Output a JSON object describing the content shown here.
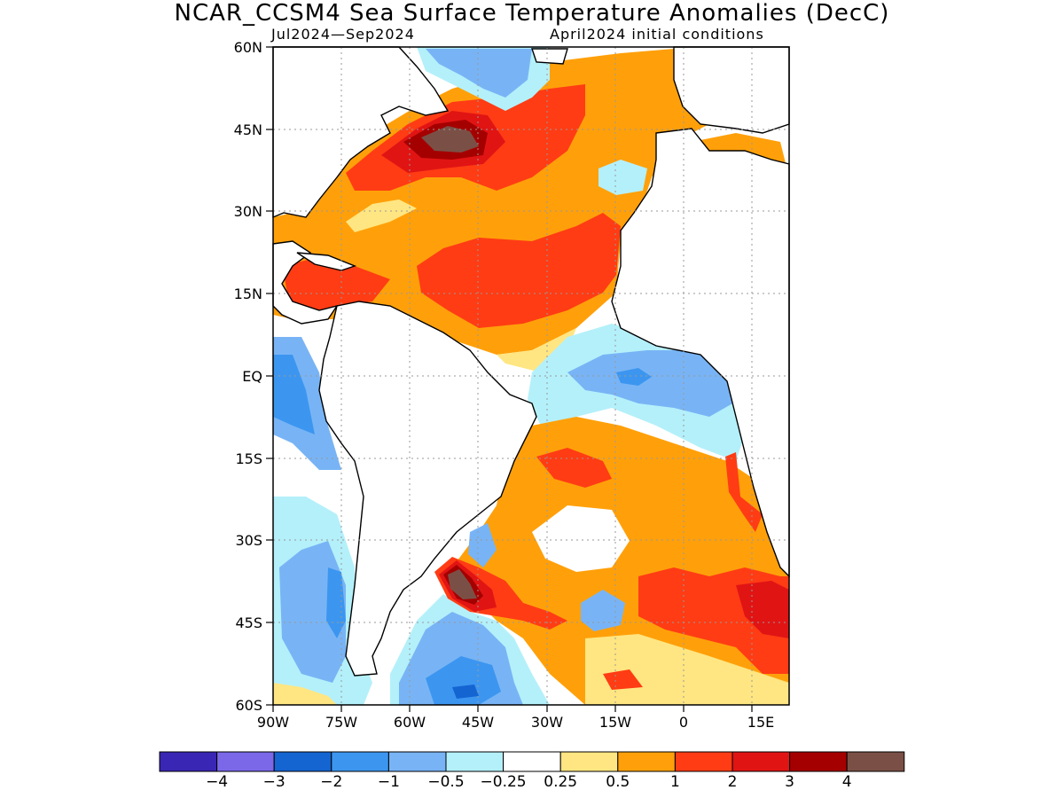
{
  "header": {
    "title": "NCAR_CCSM4 Sea Surface Temperature Anomalies (DecC)",
    "period": "Jul2024—Sep2024",
    "init": "April2024 initial conditions"
  },
  "axes": {
    "lat_labels": [
      "60N",
      "45N",
      "30N",
      "15N",
      "EQ",
      "15S",
      "30S",
      "45S",
      "60S"
    ],
    "lon_labels": [
      "90W",
      "75W",
      "60W",
      "45W",
      "30W",
      "15W",
      "0",
      "15E"
    ],
    "lat_range": [
      -60,
      60
    ],
    "lon_range": [
      -90,
      18
    ],
    "grid": true
  },
  "colorbar": {
    "colors": [
      "#3a26b4",
      "#7a68e8",
      "#1464d2",
      "#3c96f0",
      "#78b4f5",
      "#b4f0fa",
      "#ffffff",
      "#ffe682",
      "#ffa00a",
      "#ff3c14",
      "#e11414",
      "#a50000",
      "#7a5046"
    ],
    "labels": [
      "−4",
      "−3",
      "−2",
      "−1",
      "−0.5",
      "−0.25",
      "0.25",
      "0.5",
      "1",
      "2",
      "3",
      "4"
    ]
  },
  "map_data": {
    "type": "contour-map",
    "variable": "SST anomaly",
    "regions": [
      {
        "level": 0.5,
        "area": "North Atlantic broad",
        "color": "#ffa00a"
      },
      {
        "level": 1,
        "area": "Tropical North Atlantic",
        "color": "#ff3c14"
      },
      {
        "level": 3,
        "area": "Gulf Stream near 42N 52W",
        "color": "#a50000"
      },
      {
        "level": 4,
        "area": "Gulf Stream core",
        "color": "#7a5046"
      },
      {
        "level": -0.5,
        "area": "Equatorial Atlantic",
        "color": "#b4f0fa"
      },
      {
        "level": -1,
        "area": "Gulf of Guinea",
        "color": "#78b4f5"
      },
      {
        "level": 0.5,
        "area": "South Atlantic subtropics",
        "color": "#ffa00a"
      },
      {
        "level": 4,
        "area": "Brazil-Malvinas confluence near 38S 52W",
        "color": "#7a5046"
      },
      {
        "level": -1,
        "area": "Southeast Pacific off Chile",
        "color": "#78b4f5"
      },
      {
        "level": 1,
        "area": "South Atlantic near 40S 5E",
        "color": "#ff3c14"
      }
    ]
  }
}
